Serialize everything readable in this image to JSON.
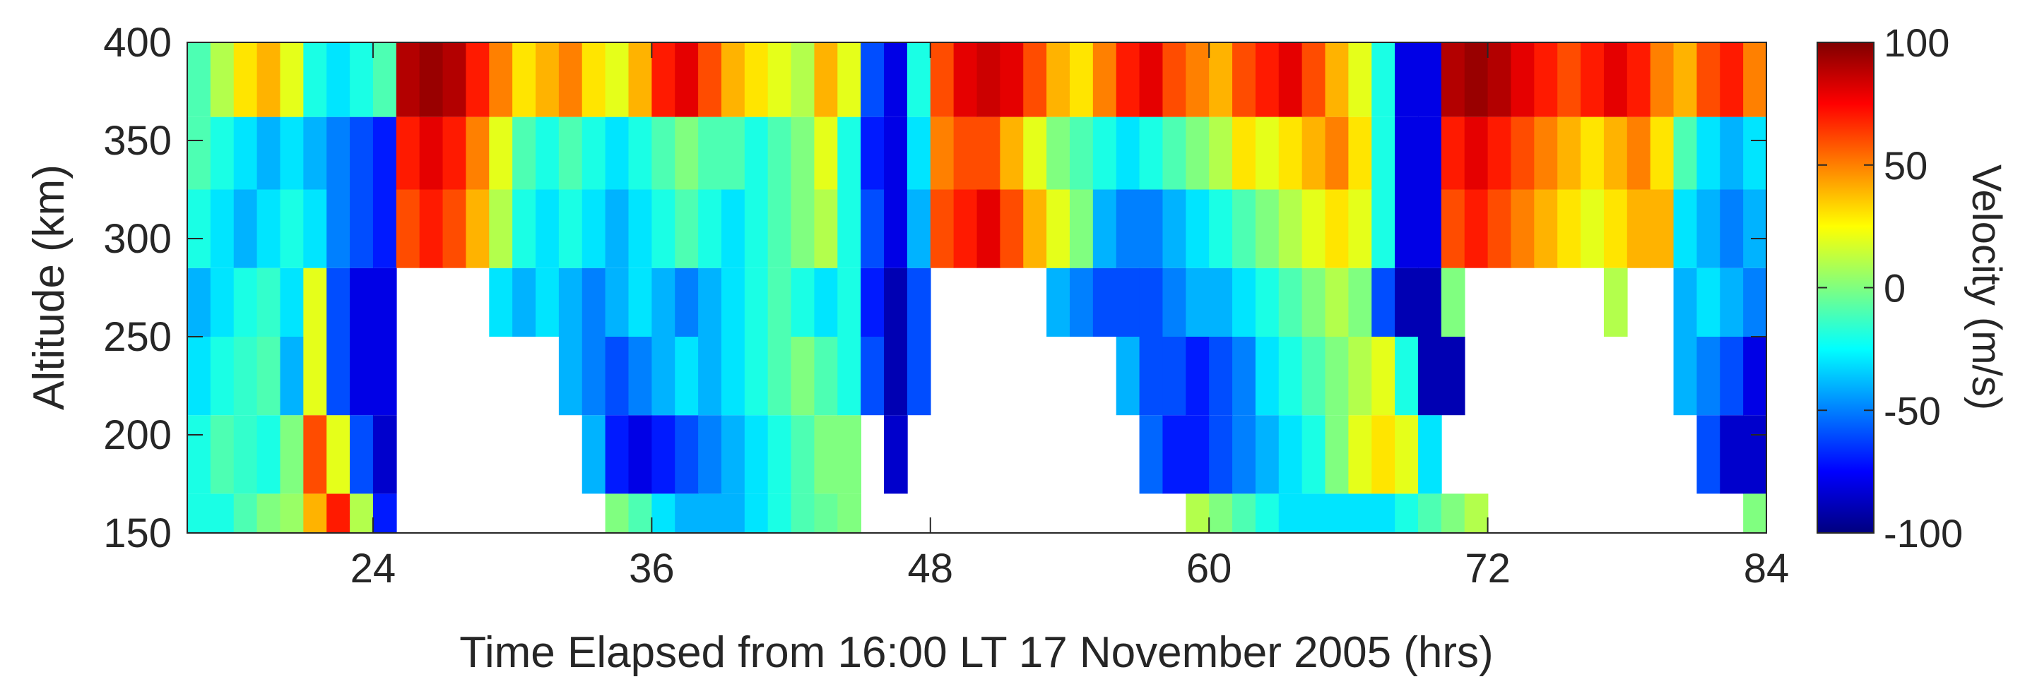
{
  "chart_data": {
    "type": "heatmap",
    "title": "",
    "xlabel": "Time Elapsed from 16:00 LT 17 November 2005 (hrs)",
    "ylabel": "Altitude (km)",
    "xlim": [
      16,
      84
    ],
    "ylim": [
      150,
      400
    ],
    "xticks": [
      24,
      36,
      48,
      60,
      72,
      84
    ],
    "yticks": [
      150,
      200,
      250,
      300,
      350,
      400
    ],
    "x_tick_labels": [
      "24",
      "36",
      "48",
      "60",
      "72",
      "84"
    ],
    "y_tick_labels": [
      "150",
      "200",
      "250",
      "300",
      "350",
      "400"
    ],
    "colorbar": {
      "label": "Velocity (m/s)",
      "range": [
        -100,
        100
      ],
      "ticks": [
        -100,
        -50,
        0,
        50,
        100
      ],
      "tick_labels": [
        "-100",
        "-50",
        "0",
        "50",
        "100"
      ],
      "colormap": "jet"
    },
    "time_grid_hours": [
      16,
      17,
      18,
      19,
      20,
      21,
      22,
      23,
      24,
      25,
      26,
      27,
      28,
      29,
      30,
      31,
      32,
      33,
      34,
      35,
      36,
      37,
      38,
      39,
      40,
      41,
      42,
      43,
      44,
      45,
      46,
      47,
      48,
      49,
      50,
      51,
      52,
      53,
      54,
      55,
      56,
      57,
      58,
      59,
      60,
      61,
      62,
      63,
      64,
      65,
      66,
      67,
      68,
      69,
      70,
      71,
      72,
      73,
      74,
      75,
      76,
      77,
      78,
      79,
      80,
      81,
      82,
      83,
      84
    ],
    "rows": [
      {
        "altitude_km": [
          150,
          170
        ],
        "velocity_ms": [
          -20,
          -20,
          -10,
          0,
          5,
          40,
          70,
          10,
          -70,
          null,
          null,
          null,
          null,
          null,
          null,
          null,
          null,
          null,
          0,
          -10,
          -30,
          -40,
          -40,
          -40,
          -30,
          -20,
          -10,
          -5,
          0,
          null,
          null,
          null,
          null,
          null,
          null,
          null,
          null,
          null,
          null,
          null,
          null,
          null,
          null,
          10,
          0,
          -10,
          -20,
          -30,
          -30,
          -30,
          -30,
          -30,
          -20,
          -10,
          0,
          10,
          null,
          null,
          null,
          null,
          null,
          null,
          null,
          null,
          null,
          null,
          null,
          0,
          40
        ]
      },
      {
        "altitude_km": [
          170,
          210
        ],
        "velocity_ms": [
          -20,
          -10,
          -15,
          -20,
          0,
          60,
          20,
          -60,
          -85,
          null,
          null,
          null,
          null,
          null,
          null,
          null,
          null,
          -40,
          -70,
          -80,
          -70,
          -60,
          -50,
          -40,
          -30,
          -20,
          -10,
          0,
          0,
          null,
          -85,
          null,
          null,
          null,
          null,
          null,
          null,
          null,
          null,
          null,
          null,
          -55,
          -70,
          -70,
          -60,
          -50,
          -40,
          -30,
          -20,
          0,
          20,
          30,
          20,
          -30,
          null,
          null,
          null,
          null,
          null,
          null,
          null,
          null,
          null,
          null,
          null,
          -60,
          -85,
          -85,
          -85
        ]
      },
      {
        "altitude_km": [
          210,
          250
        ],
        "velocity_ms": [
          -30,
          -20,
          -15,
          -10,
          -40,
          20,
          -60,
          -80,
          -80,
          null,
          null,
          null,
          null,
          null,
          null,
          null,
          -40,
          -50,
          -60,
          -50,
          -40,
          -30,
          -40,
          -30,
          -20,
          -10,
          0,
          -10,
          -20,
          -60,
          -90,
          -60,
          null,
          null,
          null,
          null,
          null,
          null,
          null,
          null,
          -40,
          -60,
          -60,
          -70,
          -60,
          -50,
          -30,
          -20,
          -10,
          0,
          10,
          20,
          -20,
          -90,
          -90,
          null,
          null,
          null,
          null,
          null,
          null,
          null,
          null,
          null,
          -40,
          -50,
          -60,
          -80,
          -80
        ]
      },
      {
        "altitude_km": [
          250,
          285
        ],
        "velocity_ms": [
          -40,
          -30,
          -20,
          -15,
          -30,
          20,
          -60,
          -80,
          -80,
          null,
          null,
          null,
          null,
          -30,
          -40,
          -30,
          -40,
          -50,
          -40,
          -30,
          -40,
          -50,
          -40,
          -30,
          -20,
          -10,
          -20,
          -30,
          -20,
          -70,
          -90,
          -60,
          null,
          null,
          null,
          null,
          null,
          -40,
          -50,
          -60,
          -60,
          -60,
          -50,
          -40,
          -40,
          -30,
          -20,
          -10,
          0,
          10,
          0,
          -60,
          -90,
          -90,
          0,
          null,
          null,
          null,
          null,
          null,
          null,
          10,
          null,
          null,
          -40,
          -30,
          -40,
          -50,
          -60
        ]
      },
      {
        "altitude_km": [
          285,
          325
        ],
        "velocity_ms": [
          -20,
          -30,
          -40,
          -30,
          -20,
          -30,
          -50,
          -60,
          -70,
          60,
          70,
          60,
          40,
          10,
          -20,
          -30,
          -20,
          -30,
          -40,
          -30,
          -20,
          -10,
          -20,
          -30,
          -20,
          -10,
          0,
          10,
          -20,
          -60,
          -80,
          -40,
          60,
          70,
          80,
          60,
          40,
          20,
          0,
          -40,
          -50,
          -50,
          -40,
          -30,
          -20,
          -10,
          0,
          10,
          20,
          30,
          20,
          -20,
          -80,
          -80,
          60,
          70,
          60,
          50,
          40,
          30,
          20,
          30,
          40,
          40,
          -30,
          -40,
          -50,
          -40,
          -20
        ]
      },
      {
        "altitude_km": [
          325,
          362
        ],
        "velocity_ms": [
          -10,
          -20,
          -30,
          -40,
          -30,
          -40,
          -50,
          -60,
          -70,
          70,
          80,
          70,
          50,
          20,
          -10,
          -20,
          -10,
          -20,
          -30,
          -20,
          -10,
          0,
          -10,
          -10,
          -20,
          -10,
          0,
          20,
          -20,
          -70,
          -80,
          -30,
          50,
          60,
          60,
          40,
          20,
          0,
          -10,
          -20,
          -30,
          -20,
          -10,
          0,
          10,
          30,
          20,
          30,
          40,
          50,
          30,
          -20,
          -80,
          -80,
          70,
          80,
          70,
          60,
          50,
          40,
          30,
          40,
          50,
          30,
          -10,
          -30,
          -40,
          -30,
          -10
        ]
      },
      {
        "altitude_km": [
          362,
          400
        ],
        "velocity_ms": [
          -10,
          10,
          30,
          40,
          20,
          -20,
          -30,
          -20,
          -10,
          90,
          95,
          90,
          70,
          50,
          30,
          40,
          50,
          30,
          20,
          40,
          70,
          80,
          60,
          40,
          30,
          20,
          10,
          40,
          20,
          -60,
          -80,
          -20,
          60,
          80,
          85,
          80,
          60,
          40,
          30,
          50,
          70,
          80,
          60,
          50,
          40,
          60,
          70,
          80,
          60,
          40,
          20,
          -20,
          -80,
          -80,
          90,
          95,
          90,
          80,
          70,
          60,
          70,
          80,
          70,
          50,
          40,
          60,
          70,
          50,
          40
        ]
      }
    ]
  }
}
